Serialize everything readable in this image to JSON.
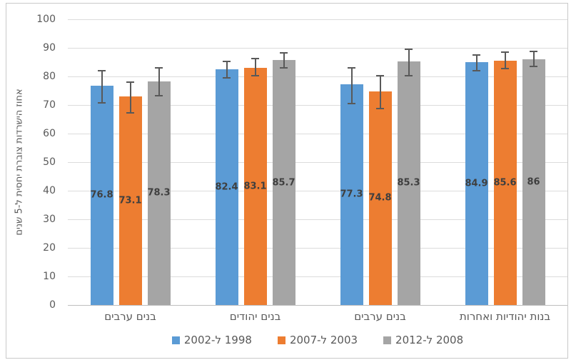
{
  "chart_data": {
    "type": "bar",
    "title": "",
    "xlabel": "",
    "ylabel": "אחוז הישרדות צוברת יחסית ל-5 שנים",
    "ylim": [
      0,
      100
    ],
    "ytick_interval": 10,
    "yticks": [
      0,
      10,
      20,
      30,
      40,
      50,
      60,
      70,
      80,
      90,
      100
    ],
    "grid": true,
    "legend_position": "bottom",
    "error_bars": true,
    "categories": [
      "בנים ערבים",
      "בנים יהודים",
      "בנים ערבים",
      "בנות יהודיות ואחרות"
    ],
    "series": [
      {
        "name": "1998 ל-2002",
        "color": "#5B9BD5",
        "values": [
          76.8,
          82.4,
          77.3,
          84.9
        ],
        "err_plus": [
          5.0,
          2.5,
          5.5,
          2.4
        ],
        "err_minus": [
          5.8,
          2.7,
          6.5,
          2.7
        ]
      },
      {
        "name": "2003 ל-2007",
        "color": "#ED7D31",
        "values": [
          73.1,
          83.1,
          74.8,
          85.6
        ],
        "err_plus": [
          4.7,
          2.9,
          5.1,
          2.7
        ],
        "err_minus": [
          5.5,
          2.6,
          5.7,
          2.6
        ]
      },
      {
        "name": "2008 ל-2012",
        "color": "#A5A5A5",
        "values": [
          78.3,
          85.7,
          85.3,
          86
        ],
        "err_plus": [
          4.5,
          2.4,
          4.0,
          2.5
        ],
        "err_minus": [
          4.8,
          2.4,
          4.8,
          2.3
        ]
      }
    ],
    "style": {
      "gridline_color": "#dcdcdc",
      "axis_line_color": "#bfbfbf",
      "text_color": "#595959",
      "data_label_color": "#3f3f3f",
      "error_bar_color": "#595959",
      "frame_border_color": "#c9c9c9"
    }
  }
}
